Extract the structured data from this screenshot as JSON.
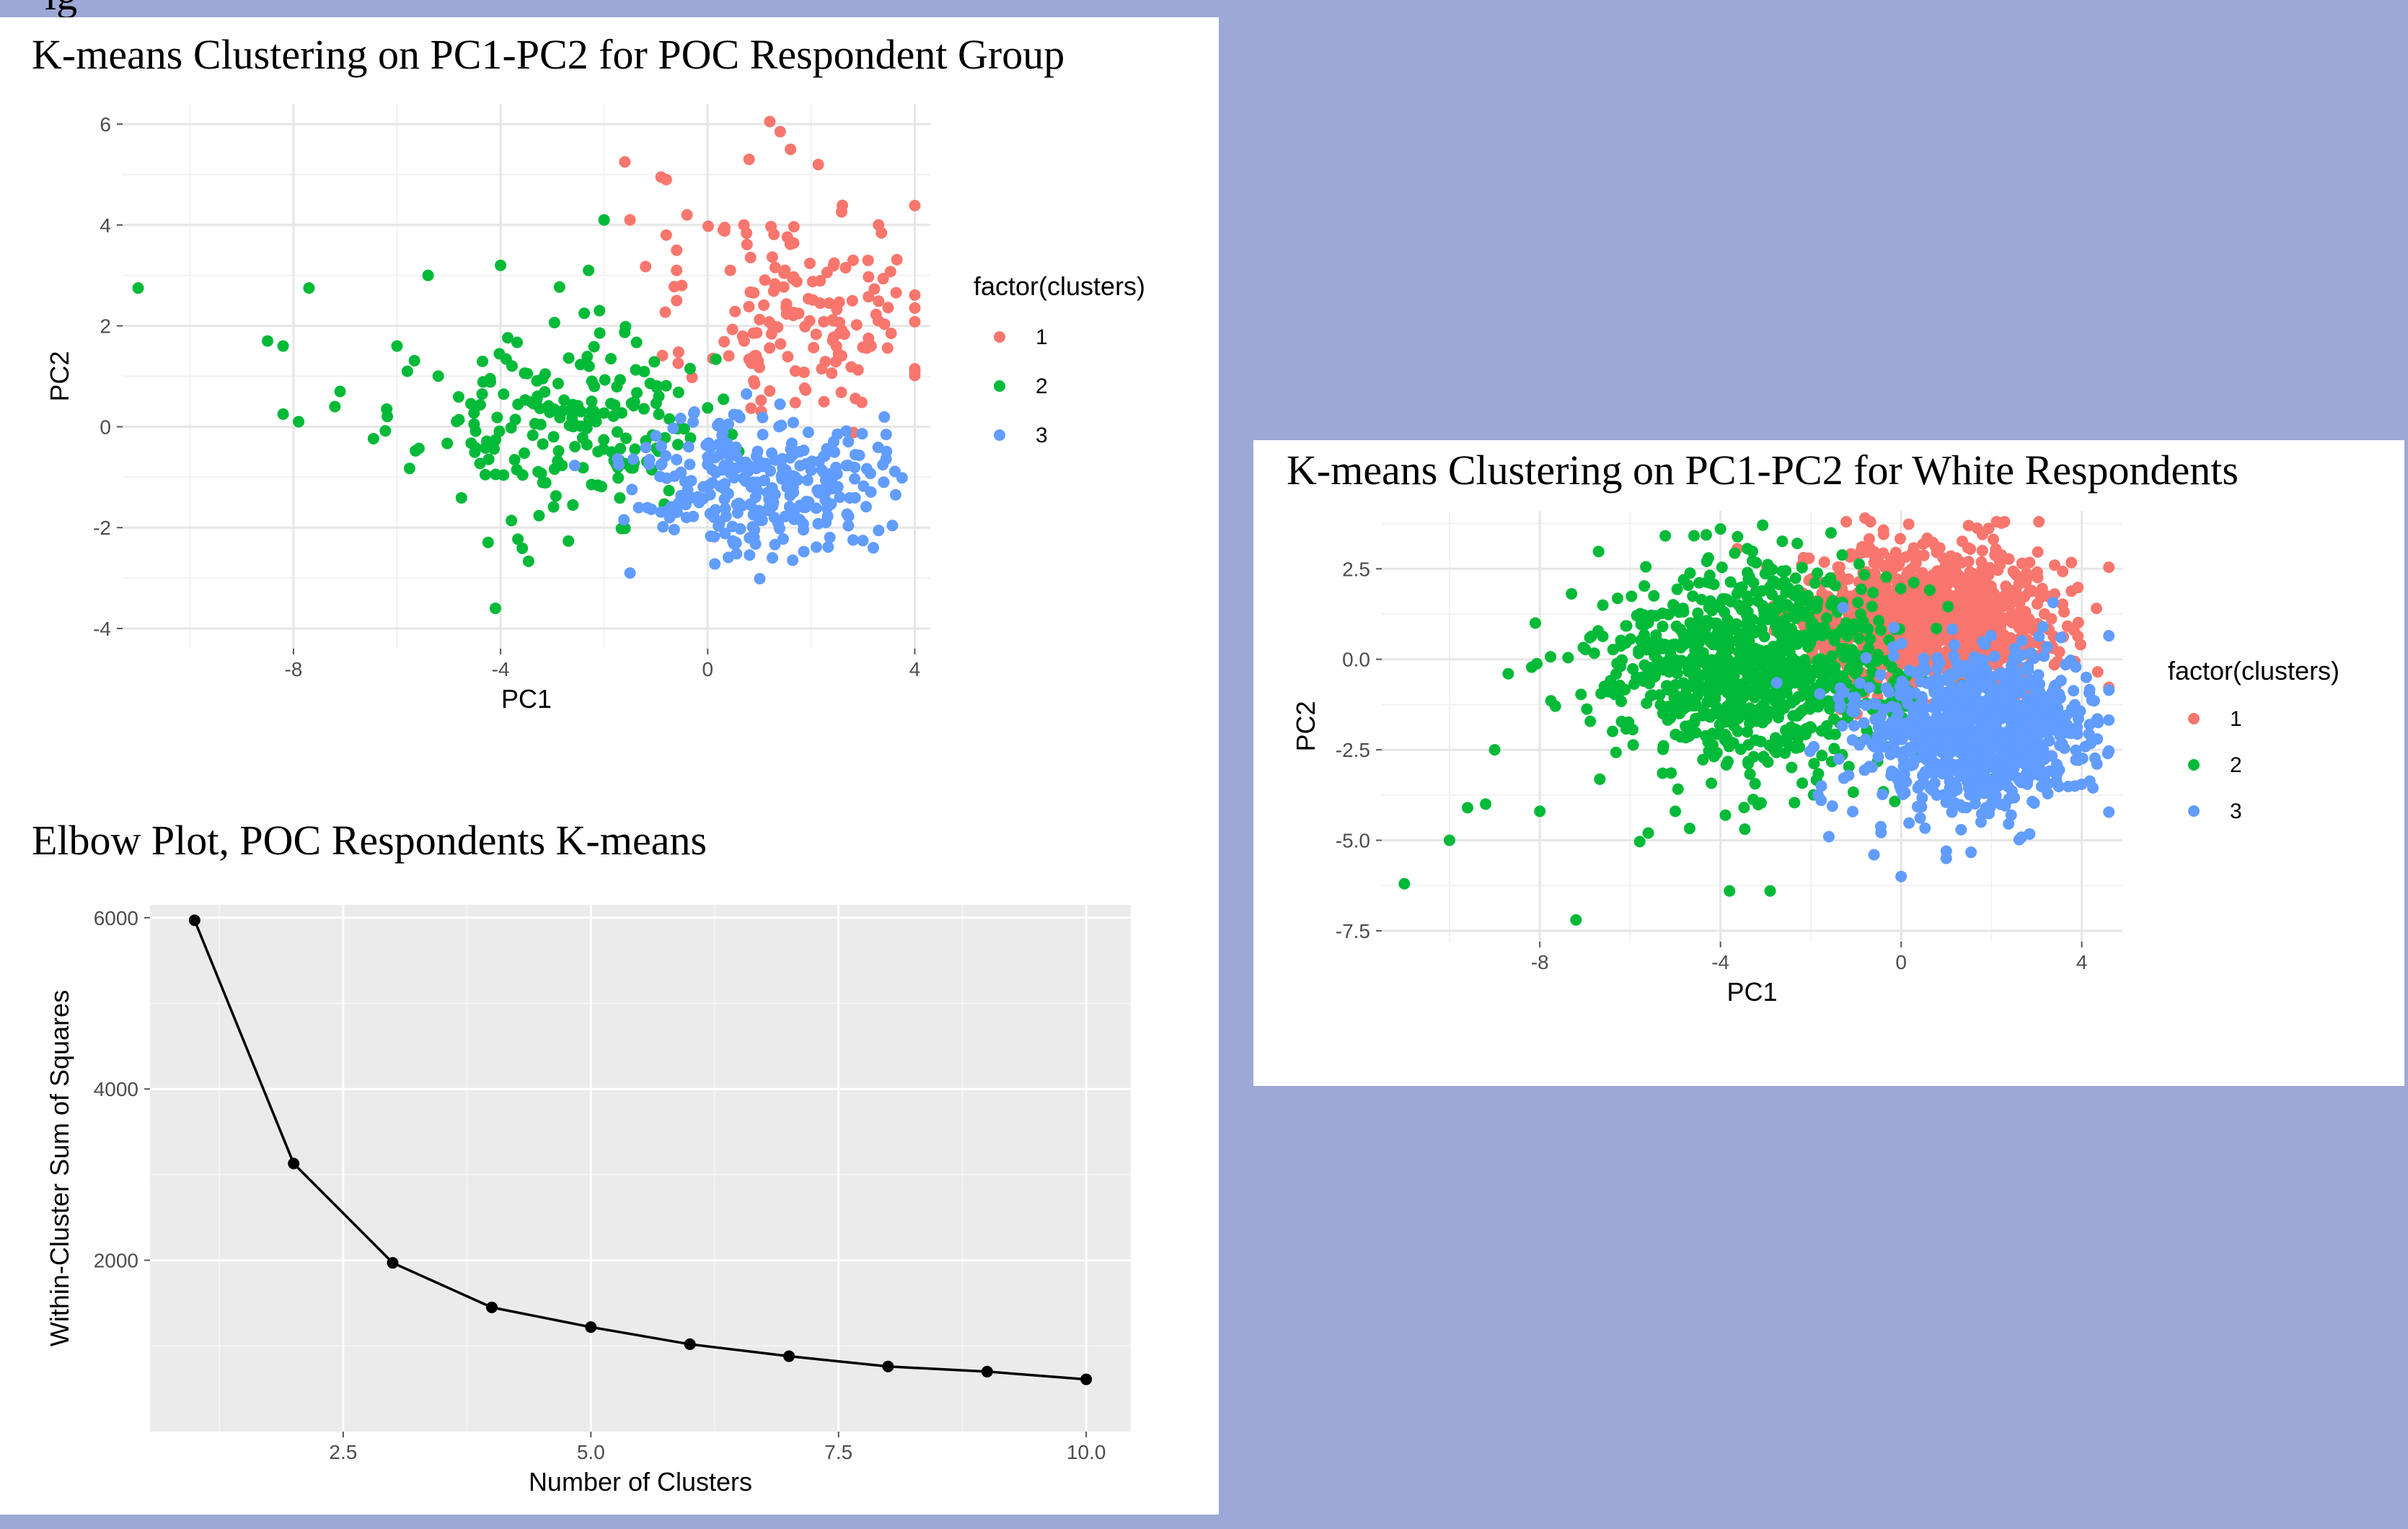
{
  "chart_data": [
    {
      "id": "poc",
      "type": "scatter",
      "title": "K-means Clustering on PC1-PC2 for POC Respondent Group",
      "xlabel": "PC1",
      "ylabel": "PC2",
      "xlim": [
        -11.3,
        4.3
      ],
      "ylim": [
        -4.4,
        6.4
      ],
      "xticks": [
        -8,
        -4,
        0,
        4
      ],
      "yticks": [
        -4,
        -2,
        0,
        2,
        4,
        6
      ],
      "xticklabels": [
        "-8",
        "-4",
        "0",
        "4"
      ],
      "yticklabels": [
        "-4",
        "-2",
        "0",
        "2",
        "4",
        "6"
      ],
      "legend_title": "factor(clusters)",
      "legend_position": "right",
      "grid": true,
      "background": "white",
      "series": [
        {
          "name": "1",
          "color": "#F8766D",
          "center": [
            1.9,
            2.2
          ],
          "spread": [
            1.1,
            1.1
          ],
          "count": 150,
          "seed": 11,
          "points": [
            [
              1.2,
              6.05
            ],
            [
              1.4,
              5.85
            ],
            [
              -1.6,
              5.25
            ],
            [
              -0.9,
              4.95
            ],
            [
              -0.8,
              4.9
            ],
            [
              -0.4,
              4.2
            ],
            [
              0.7,
              4.0
            ],
            [
              -1.5,
              4.1
            ],
            [
              -0.8,
              3.8
            ],
            [
              -0.6,
              3.5
            ],
            [
              -0.6,
              3.1
            ],
            [
              -0.5,
              2.8
            ],
            [
              -0.6,
              2.5
            ],
            [
              0.8,
              5.3
            ],
            [
              1.6,
              5.5
            ],
            [
              0.3,
              3.9
            ],
            [
              3.3,
              4.0
            ]
          ]
        },
        {
          "name": "2",
          "color": "#00BA38",
          "center": [
            -2.8,
            0.0
          ],
          "spread": [
            1.35,
            0.9
          ],
          "count": 200,
          "seed": 23,
          "points": [
            [
              -11.0,
              2.75
            ],
            [
              -7.7,
              2.75
            ],
            [
              -8.5,
              1.7
            ],
            [
              -8.2,
              1.6
            ],
            [
              -8.2,
              0.25
            ],
            [
              -7.9,
              0.1
            ],
            [
              -7.1,
              0.7
            ],
            [
              -5.4,
              3.0
            ],
            [
              -4.0,
              3.2
            ],
            [
              -2.3,
              3.1
            ],
            [
              -2.0,
              4.1
            ],
            [
              -4.1,
              -3.6
            ],
            [
              -7.2,
              0.4
            ],
            [
              -6.2,
              0.35
            ],
            [
              -5.8,
              1.1
            ],
            [
              -6.0,
              1.6
            ]
          ]
        },
        {
          "name": "3",
          "color": "#619CFF",
          "center": [
            1.0,
            -1.05
          ],
          "spread": [
            1.15,
            0.7
          ],
          "count": 290,
          "seed": 37,
          "points": [
            [
              -1.5,
              -2.9
            ],
            [
              1.25,
              -2.6
            ],
            [
              3.2,
              -2.4
            ],
            [
              3.4,
              -1.1
            ]
          ]
        }
      ]
    },
    {
      "id": "white",
      "type": "scatter",
      "title": "K-means Clustering on PC1-PC2 for White Respondents",
      "xlabel": "PC1",
      "ylabel": "PC2",
      "xlim": [
        -11.5,
        4.9
      ],
      "ylim": [
        -7.8,
        4.1
      ],
      "xticks": [
        -8,
        -4,
        0,
        4
      ],
      "yticks": [
        -7.5,
        -5.0,
        -2.5,
        0.0,
        2.5
      ],
      "xticklabels": [
        "-8",
        "-4",
        "0",
        "4"
      ],
      "yticklabels": [
        "-7.5",
        "-5.0",
        "-2.5",
        "0.0",
        "2.5"
      ],
      "legend_title": "factor(clusters)",
      "legend_position": "right",
      "grid": true,
      "background": "white",
      "series": [
        {
          "name": "1",
          "color": "#F8766D",
          "center": [
            0.6,
            1.1
          ],
          "spread": [
            1.4,
            1.0
          ],
          "count": 1100,
          "seed": 51,
          "points": [
            [
              -0.8,
              3.9
            ],
            [
              3.4,
              2.6
            ],
            [
              1.8,
              3.0
            ],
            [
              -2.2,
              2.6
            ]
          ]
        },
        {
          "name": "2",
          "color": "#00BA38",
          "center": [
            -3.4,
            -0.3
          ],
          "spread": [
            1.6,
            1.4
          ],
          "count": 900,
          "seed": 67,
          "points": [
            [
              -11.0,
              -6.2
            ],
            [
              -7.2,
              -7.2
            ],
            [
              -10.0,
              -5.0
            ],
            [
              -9.6,
              -4.1
            ],
            [
              -9.0,
              -2.5
            ],
            [
              -8.1,
              1.0
            ],
            [
              -8.7,
              -0.4
            ],
            [
              -5.6,
              -4.8
            ],
            [
              -4.0,
              3.6
            ],
            [
              -3.8,
              -6.4
            ],
            [
              -2.9,
              -6.4
            ],
            [
              -5.0,
              -4.2
            ],
            [
              -8.0,
              -4.2
            ],
            [
              -9.2,
              -4.0
            ],
            [
              -2.3,
              3.2
            ]
          ]
        },
        {
          "name": "3",
          "color": "#619CFF",
          "center": [
            1.6,
            -2.0
          ],
          "spread": [
            1.3,
            1.05
          ],
          "count": 900,
          "seed": 83,
          "points": [
            [
              0.0,
              -6.0
            ],
            [
              1.0,
              -5.3
            ],
            [
              -1.6,
              -4.9
            ],
            [
              4.1,
              -0.5
            ],
            [
              -0.6,
              -5.4
            ],
            [
              1.0,
              -5.5
            ]
          ]
        }
      ]
    },
    {
      "id": "elbow",
      "type": "line",
      "title": "Elbow Plot, POC Respondents K-means",
      "xlabel": "Number of Clusters",
      "ylabel": "Within-Cluster Sum of Squares",
      "xlim": [
        0.55,
        10.45
      ],
      "ylim": [
        0,
        6150
      ],
      "xticks": [
        2.5,
        5.0,
        7.5,
        10.0
      ],
      "yticks": [
        2000,
        4000,
        6000
      ],
      "xticklabels": [
        "2.5",
        "5.0",
        "7.5",
        "10.0"
      ],
      "yticklabels": [
        "2000",
        "4000",
        "6000"
      ],
      "grid": true,
      "background": "#EBEBEB",
      "x": [
        1,
        2,
        3,
        4,
        5,
        6,
        7,
        8,
        9,
        10
      ],
      "values": [
        5970,
        3130,
        1970,
        1450,
        1220,
        1020,
        880,
        760,
        700,
        610
      ]
    }
  ],
  "header_fragment": "ig"
}
